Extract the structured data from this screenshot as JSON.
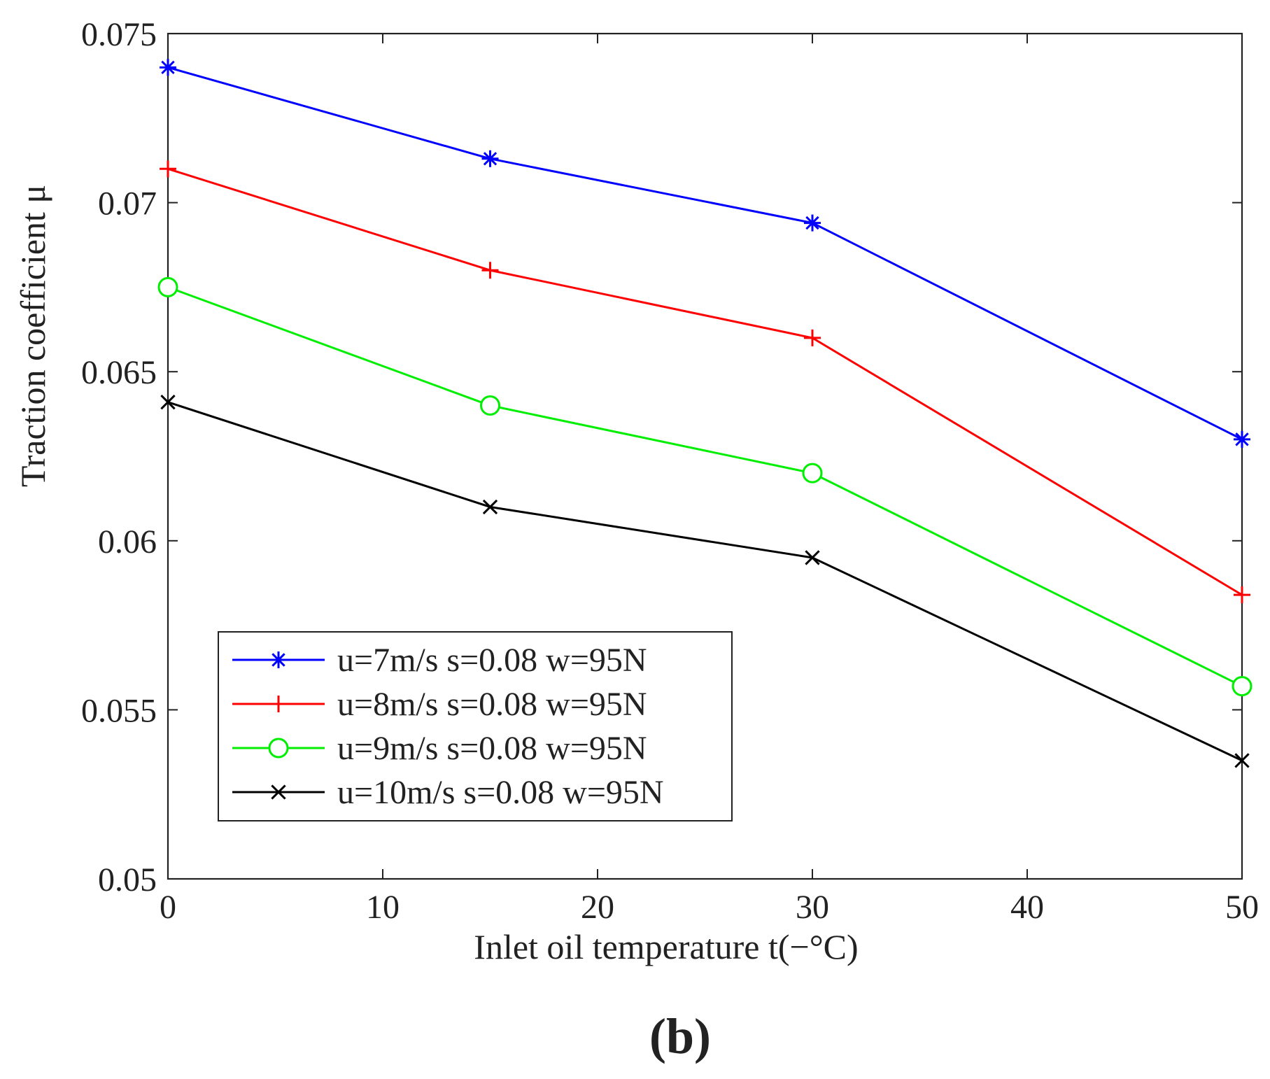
{
  "chart_data": {
    "type": "line",
    "panel_label": "(b)",
    "title": "",
    "xlabel": "Inlet oil temperature   t(−°C)",
    "ylabel": "Traction coefficient   μ",
    "xlim": [
      0,
      50
    ],
    "ylim": [
      0.05,
      0.075
    ],
    "xticks": [
      0,
      10,
      20,
      30,
      40,
      50
    ],
    "xtick_labels": [
      "0",
      "10",
      "20",
      "30",
      "40",
      "50"
    ],
    "yticks": [
      0.05,
      0.055,
      0.06,
      0.065,
      0.07,
      0.075
    ],
    "ytick_labels": [
      "0.05",
      "0.055",
      "0.06",
      "0.065",
      "0.07",
      "0.075"
    ],
    "grid": false,
    "legend_position": "bottom-left",
    "x": [
      0,
      15,
      30,
      50
    ],
    "series": [
      {
        "name": "u=7m/s s=0.08 w=95N",
        "color": "#0000ff",
        "marker": "asterisk",
        "values": [
          0.074,
          0.0713,
          0.0694,
          0.063
        ]
      },
      {
        "name": "u=8m/s s=0.08 w=95N",
        "color": "#ff0000",
        "marker": "plus",
        "values": [
          0.071,
          0.068,
          0.066,
          0.0584
        ]
      },
      {
        "name": "u=9m/s s=0.08 w=95N",
        "color": "#00ee00",
        "marker": "circle",
        "values": [
          0.0675,
          0.064,
          0.062,
          0.0557
        ]
      },
      {
        "name": "u=10m/s s=0.08 w=95N",
        "color": "#000000",
        "marker": "cross",
        "values": [
          0.0641,
          0.061,
          0.0595,
          0.0535
        ]
      }
    ]
  }
}
